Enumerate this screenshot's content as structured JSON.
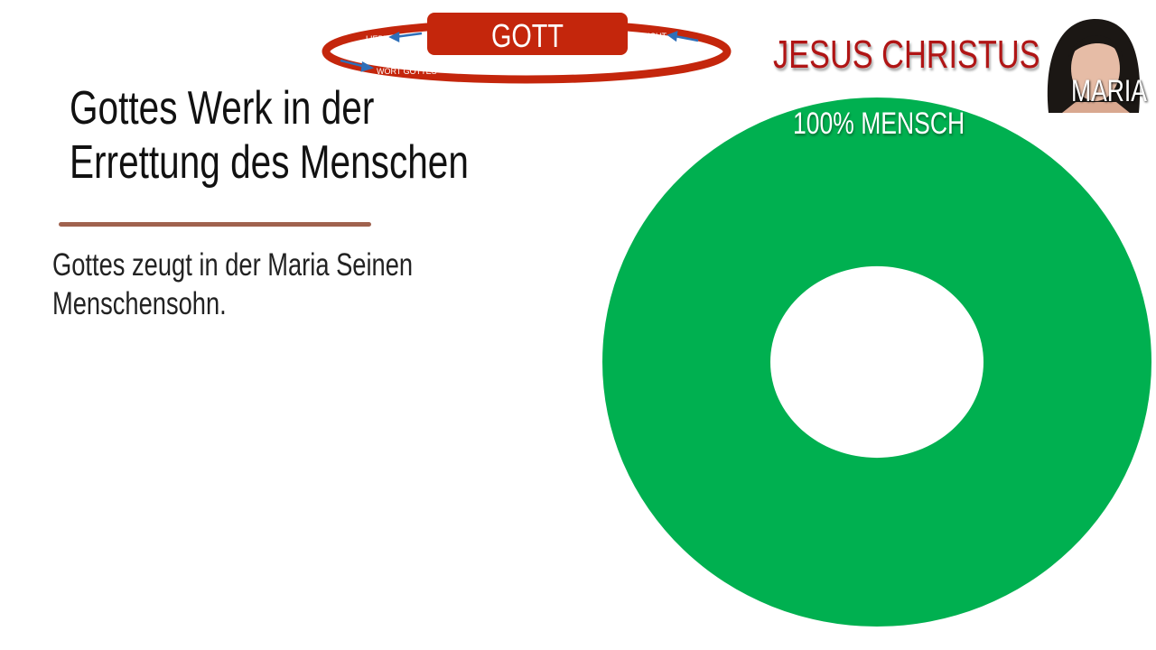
{
  "slide": {
    "title_line1": "Gottes Werk in der",
    "title_line2": "Errettung des Menschen",
    "body_line1": "Gottes zeugt in der Maria Seinen",
    "body_line2": "Menschensohn."
  },
  "cycle_diagram": {
    "center_label": "GOTT",
    "labels": [
      "LIEBE",
      "FRUCHT",
      "WORT GOTTES"
    ],
    "ring_color": "#c4260c",
    "arrow_color": "#2e6fb8"
  },
  "jesus_label": "JESUS CHRISTUS",
  "maria": {
    "label": "MARIA"
  },
  "donut": {
    "label": "100% MENSCH",
    "percent": 100,
    "color": "#00b050"
  }
}
